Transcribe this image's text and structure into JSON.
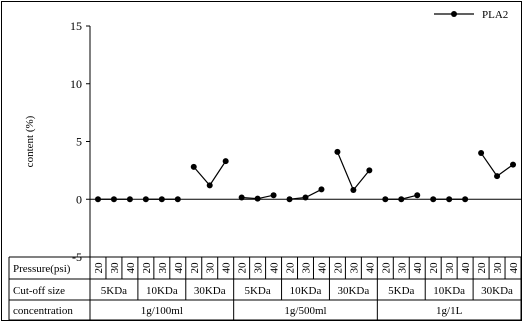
{
  "chart_data": {
    "type": "line",
    "title": "",
    "ylabel": "content (%)",
    "ylim": [
      -5,
      15
    ],
    "yticks": [
      -5,
      0,
      5,
      10,
      15
    ],
    "grid": false,
    "legend_position": "top-right",
    "series": [
      {
        "name": "PLA2",
        "color": "#000000",
        "values": [
          0,
          0,
          0,
          0,
          0,
          0,
          2.8,
          1.2,
          3.3,
          0.15,
          0.05,
          0.35,
          0,
          0.15,
          0.85,
          4.1,
          0.8,
          2.5,
          0,
          0,
          0.35,
          0,
          0,
          0,
          4.0,
          2.0,
          3.0
        ]
      }
    ],
    "rows": {
      "pressure": {
        "label": "Pressure(psi)",
        "values": [
          "20",
          "30",
          "40",
          "20",
          "30",
          "40",
          "20",
          "30",
          "40",
          "20",
          "30",
          "40",
          "20",
          "30",
          "40",
          "20",
          "30",
          "40",
          "20",
          "30",
          "40",
          "20",
          "30",
          "40",
          "20",
          "30",
          "40"
        ]
      },
      "cutoff": {
        "label": "Cut-off size",
        "values": [
          "5KDa",
          "10KDa",
          "30KDa",
          "5KDa",
          "10KDa",
          "30KDa",
          "5KDa",
          "10KDa",
          "30KDa"
        ]
      },
      "concentration": {
        "label": "concentration",
        "values": [
          "1g/100ml",
          "1g/500ml",
          "1g/1L"
        ]
      }
    }
  }
}
